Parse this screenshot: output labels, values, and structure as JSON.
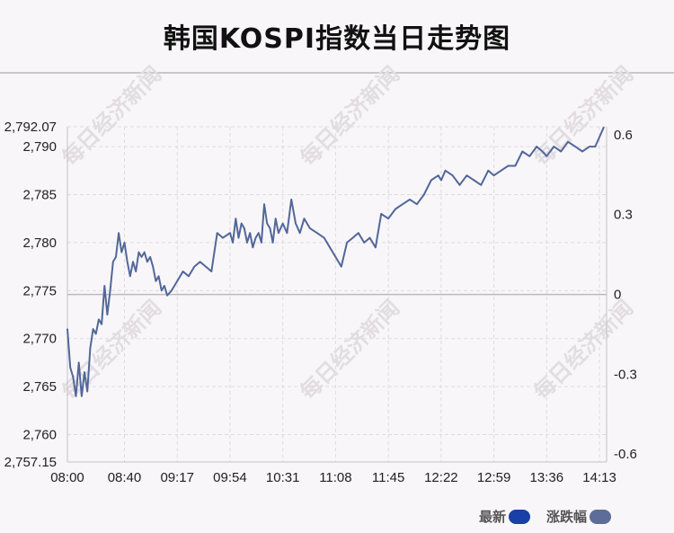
{
  "title": "韩国KOSPI指数当日走势图",
  "watermark": "每日经济新闻",
  "colors": {
    "line": "#52679a",
    "legend_latest": "#1a3fa6",
    "legend_change": "#5b6d98",
    "grid": "#dddddd",
    "zero_line": "#bbbbbb"
  },
  "legend": {
    "latest": "最新",
    "change": "涨跌幅"
  },
  "chart_data": {
    "type": "line",
    "title": "韩国KOSPI指数当日走势图",
    "x_ticks": [
      "08:00",
      "08:40",
      "09:17",
      "09:54",
      "10:31",
      "11:08",
      "11:45",
      "12:22",
      "12:59",
      "13:36",
      "14:13"
    ],
    "x_range_minutes": [
      480,
      858
    ],
    "y_left": {
      "min": 2757.15,
      "max": 2792.07,
      "ticks": [
        "2,757.15",
        "2,760",
        "2,765",
        "2,770",
        "2,775",
        "2,780",
        "2,785",
        "2,790",
        "2,792.07"
      ],
      "tick_values": [
        2757.15,
        2760,
        2765,
        2770,
        2775,
        2780,
        2785,
        2790,
        2792.07
      ]
    },
    "y_right": {
      "min": -0.63,
      "max": 0.63,
      "ticks": [
        "-0.6",
        "-0.3",
        "0",
        "0.3",
        "0.6"
      ],
      "tick_values": [
        -0.6,
        -0.3,
        0,
        0.3,
        0.6
      ]
    },
    "reference_value": 2774.6,
    "grid": true,
    "series": [
      {
        "points": [
          [
            "08:00",
            2771.0
          ],
          [
            "08:02",
            2767.0
          ],
          [
            "08:04",
            2766.0
          ],
          [
            "08:06",
            2764.0
          ],
          [
            "08:08",
            2767.5
          ],
          [
            "08:10",
            2764.0
          ],
          [
            "08:12",
            2766.5
          ],
          [
            "08:14",
            2764.5
          ],
          [
            "08:16",
            2769.0
          ],
          [
            "08:18",
            2771.0
          ],
          [
            "08:20",
            2770.5
          ],
          [
            "08:22",
            2772.0
          ],
          [
            "08:24",
            2771.5
          ],
          [
            "08:26",
            2775.5
          ],
          [
            "08:28",
            2772.5
          ],
          [
            "08:30",
            2775.0
          ],
          [
            "08:32",
            2778.0
          ],
          [
            "08:34",
            2778.5
          ],
          [
            "08:36",
            2781.0
          ],
          [
            "08:38",
            2779.0
          ],
          [
            "08:40",
            2780.0
          ],
          [
            "08:42",
            2778.0
          ],
          [
            "08:44",
            2776.5
          ],
          [
            "08:46",
            2778.0
          ],
          [
            "08:48",
            2777.0
          ],
          [
            "08:50",
            2779.0
          ],
          [
            "08:52",
            2778.5
          ],
          [
            "08:54",
            2779.0
          ],
          [
            "08:56",
            2778.0
          ],
          [
            "08:58",
            2778.5
          ],
          [
            "09:00",
            2777.5
          ],
          [
            "09:02",
            2776.0
          ],
          [
            "09:04",
            2776.5
          ],
          [
            "09:06",
            2775.0
          ],
          [
            "09:08",
            2775.5
          ],
          [
            "09:10",
            2774.5
          ],
          [
            "09:13",
            2775.0
          ],
          [
            "09:17",
            2776.0
          ],
          [
            "09:21",
            2777.0
          ],
          [
            "09:25",
            2776.5
          ],
          [
            "09:29",
            2777.5
          ],
          [
            "09:33",
            2778.0
          ],
          [
            "09:37",
            2777.5
          ],
          [
            "09:41",
            2777.0
          ],
          [
            "09:45",
            2781.0
          ],
          [
            "09:49",
            2780.5
          ],
          [
            "09:54",
            2781.0
          ],
          [
            "09:56",
            2780.0
          ],
          [
            "09:58",
            2782.5
          ],
          [
            "10:00",
            2780.5
          ],
          [
            "10:02",
            2782.0
          ],
          [
            "10:04",
            2781.5
          ],
          [
            "10:06",
            2780.0
          ],
          [
            "10:08",
            2781.0
          ],
          [
            "10:10",
            2779.5
          ],
          [
            "10:12",
            2780.5
          ],
          [
            "10:14",
            2781.0
          ],
          [
            "10:16",
            2780.0
          ],
          [
            "10:18",
            2784.0
          ],
          [
            "10:20",
            2782.0
          ],
          [
            "10:22",
            2781.5
          ],
          [
            "10:24",
            2780.0
          ],
          [
            "10:26",
            2782.5
          ],
          [
            "10:28",
            2781.0
          ],
          [
            "10:31",
            2782.0
          ],
          [
            "10:34",
            2781.0
          ],
          [
            "10:37",
            2784.5
          ],
          [
            "10:40",
            2782.0
          ],
          [
            "10:43",
            2781.0
          ],
          [
            "10:46",
            2782.5
          ],
          [
            "10:50",
            2781.5
          ],
          [
            "10:55",
            2781.0
          ],
          [
            "11:00",
            2780.5
          ],
          [
            "11:04",
            2779.5
          ],
          [
            "11:08",
            2778.5
          ],
          [
            "11:12",
            2777.5
          ],
          [
            "11:16",
            2780.0
          ],
          [
            "11:20",
            2780.5
          ],
          [
            "11:24",
            2781.0
          ],
          [
            "11:28",
            2780.0
          ],
          [
            "11:32",
            2780.5
          ],
          [
            "11:36",
            2779.5
          ],
          [
            "11:40",
            2783.0
          ],
          [
            "11:45",
            2782.5
          ],
          [
            "11:50",
            2783.5
          ],
          [
            "11:55",
            2784.0
          ],
          [
            "12:00",
            2784.5
          ],
          [
            "12:05",
            2784.0
          ],
          [
            "12:10",
            2785.0
          ],
          [
            "12:15",
            2786.5
          ],
          [
            "12:20",
            2787.0
          ],
          [
            "12:22",
            2786.5
          ],
          [
            "12:25",
            2787.5
          ],
          [
            "12:30",
            2787.0
          ],
          [
            "12:35",
            2786.0
          ],
          [
            "12:40",
            2787.0
          ],
          [
            "12:45",
            2786.5
          ],
          [
            "12:50",
            2786.0
          ],
          [
            "12:55",
            2787.5
          ],
          [
            "12:59",
            2787.0
          ],
          [
            "13:04",
            2787.5
          ],
          [
            "13:09",
            2788.0
          ],
          [
            "13:14",
            2788.0
          ],
          [
            "13:19",
            2789.5
          ],
          [
            "13:24",
            2789.0
          ],
          [
            "13:29",
            2790.0
          ],
          [
            "13:33",
            2789.5
          ],
          [
            "13:36",
            2789.0
          ],
          [
            "13:41",
            2790.0
          ],
          [
            "13:46",
            2789.5
          ],
          [
            "13:51",
            2790.5
          ],
          [
            "13:56",
            2790.0
          ],
          [
            "14:01",
            2789.5
          ],
          [
            "14:06",
            2790.0
          ],
          [
            "14:10",
            2790.0
          ],
          [
            "14:13",
            2791.0
          ],
          [
            "14:16",
            2792.0
          ]
        ]
      }
    ]
  }
}
